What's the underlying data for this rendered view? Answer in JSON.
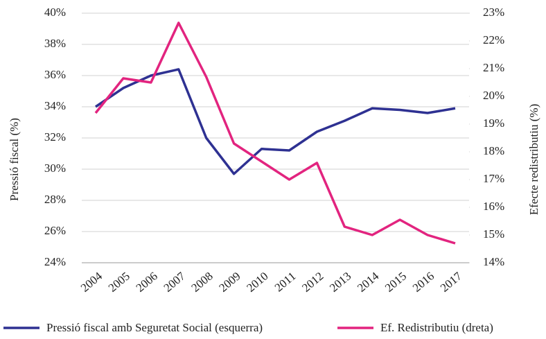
{
  "chart_data": {
    "type": "line",
    "y_label": "Pressió fiscal (%)",
    "y2_label": "Efecte redistributiu (%)",
    "categories": [
      "2004",
      "2005",
      "2006",
      "2007",
      "2008",
      "2009",
      "2010",
      "2011",
      "2012",
      "2013",
      "2014",
      "2015",
      "2016",
      "2017"
    ],
    "series": [
      {
        "name": "Pressió fiscal amb Seguretat Social (esquerra)",
        "color": "#2e3192",
        "values": [
          34.0,
          35.2,
          36.0,
          36.4,
          32.0,
          29.7,
          31.3,
          31.2,
          32.4,
          33.1,
          33.9,
          33.8,
          33.6,
          33.9
        ]
      },
      {
        "name": "Ef. Redistributiu (dreta)",
        "color": "#e2247f",
        "axis": "y2",
        "values": [
          19.4,
          20.65,
          20.5,
          22.65,
          20.7,
          18.3,
          17.65,
          17.0,
          17.6,
          15.3,
          15.0,
          15.55,
          15.0,
          14.7
        ]
      }
    ],
    "ylim": [
      24,
      40
    ],
    "yticks": [
      {
        "value": 24,
        "label": "24%"
      },
      {
        "value": 26,
        "label": "26%"
      },
      {
        "value": 28,
        "label": "28%"
      },
      {
        "value": 30,
        "label": "30%"
      },
      {
        "value": 32,
        "label": "32%"
      },
      {
        "value": 34,
        "label": "34%"
      },
      {
        "value": 36,
        "label": "36%"
      },
      {
        "value": 38,
        "label": "38%"
      },
      {
        "value": 40,
        "label": "40%"
      }
    ],
    "y2lim": [
      14,
      23
    ],
    "y2ticks": [
      {
        "value": 14,
        "label": "14%"
      },
      {
        "value": 15,
        "label": "15%"
      },
      {
        "value": 16,
        "label": "16%"
      },
      {
        "value": 17,
        "label": "17%"
      },
      {
        "value": 18,
        "label": "18%"
      },
      {
        "value": 19,
        "label": "19%"
      },
      {
        "value": 20,
        "label": "20%"
      },
      {
        "value": 21,
        "label": "21%"
      },
      {
        "value": 22,
        "label": "22%"
      },
      {
        "value": 23,
        "label": "23%"
      }
    ],
    "grid": true,
    "legend": "bottom"
  }
}
